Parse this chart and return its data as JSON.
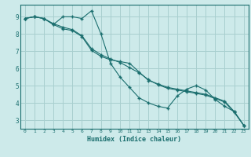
{
  "xlabel": "Humidex (Indice chaleur)",
  "bg_color": "#cdeaea",
  "grid_color": "#a8cfcf",
  "line_color": "#1a6e6e",
  "xlim": [
    -0.5,
    23.5
  ],
  "ylim": [
    2.5,
    9.7
  ],
  "yticks": [
    3,
    4,
    5,
    6,
    7,
    8,
    9
  ],
  "xticks": [
    0,
    1,
    2,
    3,
    4,
    5,
    6,
    7,
    8,
    9,
    10,
    11,
    12,
    13,
    14,
    15,
    16,
    17,
    18,
    19,
    20,
    21,
    22,
    23
  ],
  "series1_x": [
    0,
    1,
    2,
    3,
    4,
    5,
    6,
    7,
    8,
    9,
    10,
    11,
    12,
    13,
    14,
    15,
    16,
    17,
    18,
    19,
    20,
    21,
    22,
    23
  ],
  "series1_y": [
    8.9,
    9.0,
    8.9,
    8.55,
    9.0,
    9.0,
    8.9,
    9.35,
    8.0,
    6.3,
    5.5,
    4.9,
    4.3,
    4.0,
    3.8,
    3.7,
    4.4,
    4.8,
    5.0,
    4.75,
    4.2,
    3.8,
    3.5,
    2.7
  ],
  "series2_x": [
    0,
    1,
    2,
    3,
    4,
    5,
    6,
    7,
    8,
    9,
    10,
    11,
    12,
    13,
    14,
    15,
    16,
    17,
    18,
    19,
    20,
    21,
    22,
    23
  ],
  "series2_y": [
    8.9,
    9.0,
    8.9,
    8.55,
    8.3,
    8.2,
    7.85,
    7.05,
    6.7,
    6.5,
    6.4,
    6.3,
    5.8,
    5.3,
    5.1,
    4.9,
    4.8,
    4.7,
    4.6,
    4.5,
    4.3,
    4.1,
    3.5,
    2.7
  ],
  "series3_x": [
    0,
    1,
    2,
    3,
    4,
    5,
    6,
    7,
    8,
    9,
    10,
    11,
    12,
    13,
    14,
    15,
    16,
    17,
    18,
    19,
    20,
    21,
    22,
    23
  ],
  "series3_y": [
    8.9,
    9.0,
    8.9,
    8.6,
    8.4,
    8.25,
    7.9,
    7.15,
    6.8,
    6.55,
    6.35,
    6.05,
    5.75,
    5.35,
    5.05,
    4.85,
    4.75,
    4.65,
    4.55,
    4.45,
    4.25,
    4.05,
    3.45,
    2.7
  ]
}
